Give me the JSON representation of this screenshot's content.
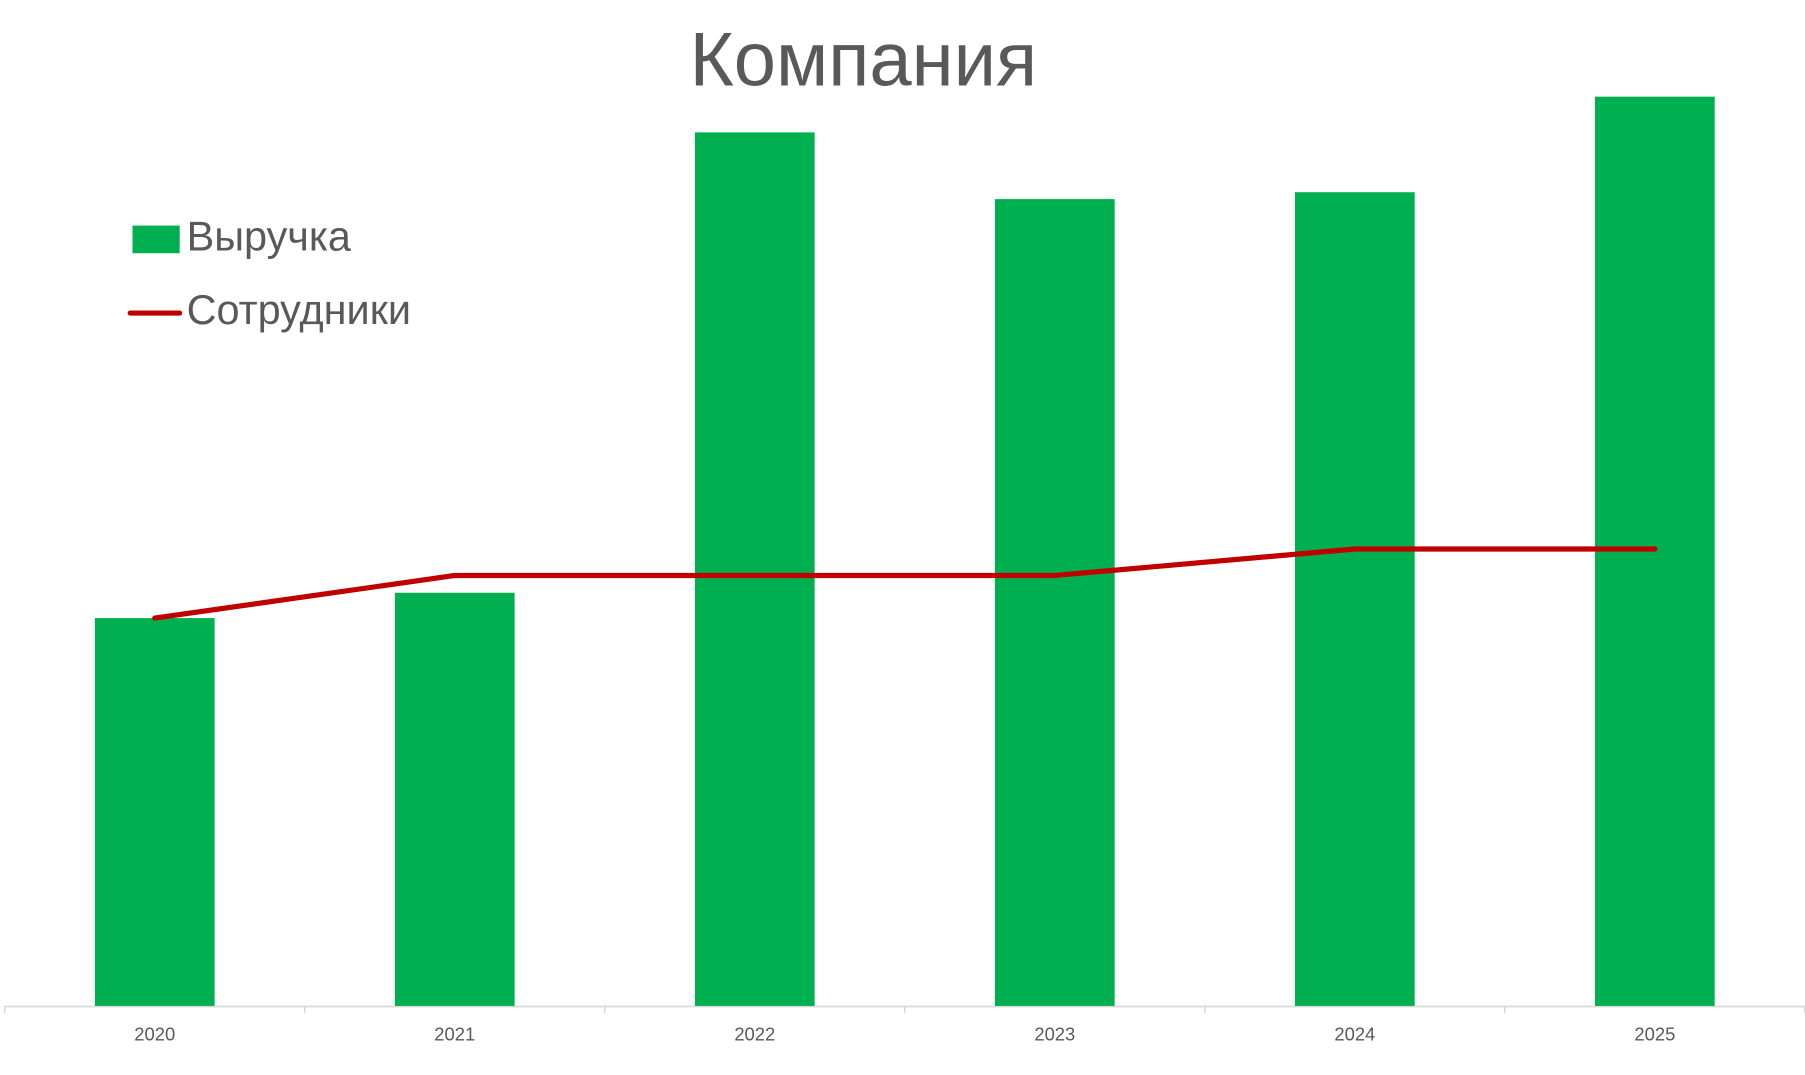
{
  "chart_data": {
    "type": "bar-line",
    "title": "Компания",
    "categories": [
      "2020",
      "2021",
      "2022",
      "2023",
      "2024",
      "2025"
    ],
    "series": [
      {
        "name": "Выручка",
        "type": "bar",
        "color": "#00b050",
        "values": [
          33.7,
          35.9,
          75.9,
          70.1,
          70.7,
          79.0
        ]
      },
      {
        "name": "Сотрудники",
        "type": "line",
        "color": "#c00000",
        "values": [
          33.7,
          37.4,
          37.4,
          37.4,
          39.7,
          39.7
        ]
      }
    ],
    "ylim": [
      0,
      80
    ],
    "grid": false,
    "legend": "upper left"
  }
}
